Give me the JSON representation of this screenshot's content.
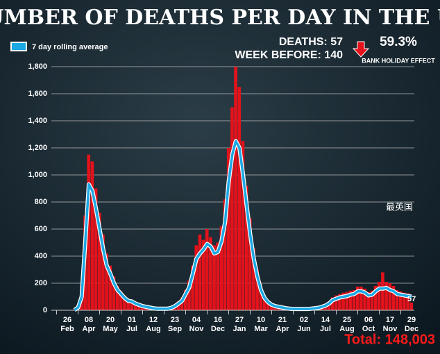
{
  "chart_data": {
    "type": "bar-line",
    "title": "NUMBER OF DEATHS PER DAY IN THE UK",
    "annotations": {
      "deaths": "DEATHS: 57",
      "week_before": "WEEK BEFORE: 140",
      "percent": "59.3%",
      "effect": "BANK HOLIDAY EFFECT",
      "last_label": "57",
      "total": "Total: 148,003",
      "watermark": "最英国"
    },
    "categories": [
      "26 Feb",
      null,
      null,
      null,
      null,
      null,
      "08 Apr",
      null,
      null,
      null,
      null,
      null,
      "20 May",
      null,
      null,
      null,
      null,
      null,
      "01 Jul",
      null,
      null,
      null,
      null,
      null,
      "12 Aug",
      null,
      null,
      null,
      null,
      null,
      "23 Sep",
      null,
      null,
      null,
      null,
      null,
      "04 Nov",
      null,
      null,
      null,
      null,
      null,
      "16 Dec",
      null,
      null,
      null,
      null,
      null,
      "27 Jan",
      null,
      null,
      null,
      null,
      null,
      "10 Mar",
      null,
      null,
      null,
      null,
      null,
      "21 Apr",
      null,
      null,
      null,
      null,
      null,
      "02 Jun",
      null,
      null,
      null,
      null,
      null,
      "14 Jul",
      null,
      null,
      null,
      null,
      null,
      "25 Aug",
      null,
      null,
      null,
      null,
      null,
      "06 Oct",
      null,
      null,
      null,
      null,
      null,
      "17 Nov",
      null,
      null,
      null,
      null,
      null,
      "29 Dec"
    ],
    "bars": {
      "color": "#e3121b",
      "values": [
        0,
        0,
        5,
        40,
        180,
        700,
        1150,
        1100,
        900,
        720,
        560,
        420,
        330,
        250,
        180,
        140,
        110,
        85,
        75,
        60,
        48,
        36,
        30,
        24,
        18,
        15,
        14,
        14,
        15,
        22,
        38,
        65,
        95,
        150,
        220,
        330,
        480,
        560,
        520,
        600,
        540,
        480,
        500,
        620,
        820,
        1200,
        1500,
        1800,
        1650,
        1250,
        920,
        680,
        460,
        300,
        180,
        110,
        70,
        48,
        35,
        28,
        22,
        18,
        14,
        12,
        11,
        11,
        11,
        12,
        14,
        18,
        22,
        30,
        45,
        65,
        95,
        110,
        120,
        130,
        135,
        145,
        150,
        175,
        175,
        160,
        135,
        145,
        180,
        210,
        280,
        210,
        200,
        180,
        150,
        140,
        130,
        125,
        57
      ]
    },
    "series": [
      {
        "name": "7 day rolling average",
        "color": "#1ba8e3",
        "values": [
          null,
          null,
          2,
          20,
          100,
          500,
          930,
          880,
          750,
          600,
          450,
          330,
          270,
          200,
          150,
          120,
          90,
          70,
          65,
          50,
          40,
          30,
          25,
          20,
          15,
          12,
          12,
          12,
          12,
          18,
          30,
          50,
          70,
          120,
          170,
          270,
          380,
          420,
          450,
          490,
          470,
          420,
          430,
          510,
          650,
          950,
          1150,
          1250,
          1200,
          1000,
          780,
          560,
          380,
          250,
          150,
          90,
          60,
          40,
          30,
          25,
          20,
          15,
          12,
          10,
          10,
          10,
          10,
          10,
          12,
          15,
          18,
          25,
          35,
          50,
          75,
          85,
          95,
          100,
          105,
          115,
          120,
          140,
          140,
          130,
          110,
          115,
          140,
          160,
          160,
          165,
          150,
          140,
          120,
          115,
          110,
          105,
          100
        ]
      }
    ],
    "ylim": [
      0,
      1800
    ],
    "yticks": [
      0,
      200,
      400,
      600,
      800,
      {
        "value": 1000,
        "label": "1,000"
      },
      {
        "value": 1200,
        "label": "1,200"
      },
      {
        "value": 1400,
        "label": "1,400"
      },
      {
        "value": 1600,
        "label": "1,600"
      },
      {
        "value": 1800,
        "label": "1,800"
      }
    ],
    "grid": true
  }
}
